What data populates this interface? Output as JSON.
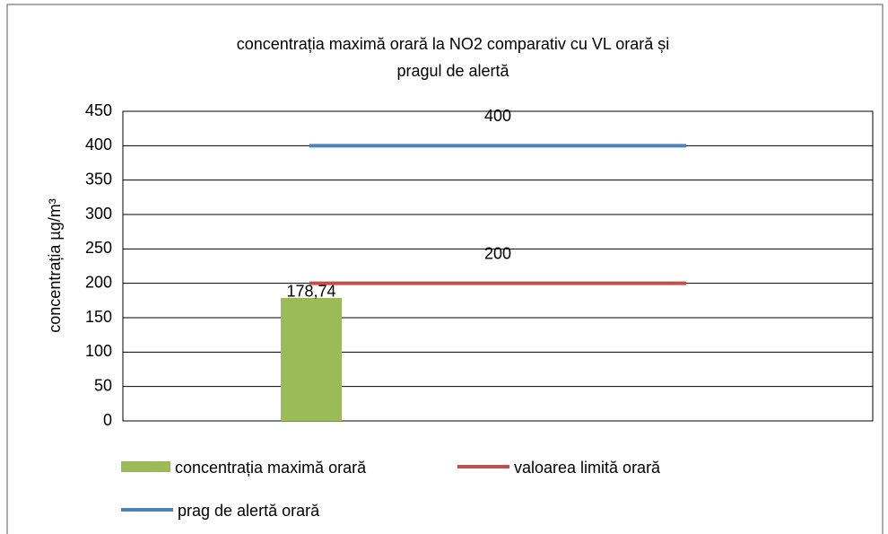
{
  "chart_data": {
    "type": "bar",
    "title": [
      "concentrația maximă orară la NO2 comparativ cu VL orară și",
      "pragul de alertă"
    ],
    "ylabel": "concentrația µg/m³",
    "categories": [
      null
    ],
    "series": [
      {
        "name": "concentrația maximă orară",
        "type": "bar",
        "color": "#9bbb59",
        "values": [
          178.74
        ],
        "value_labels": [
          "178,74"
        ]
      },
      {
        "name": "valoarea limită orară",
        "type": "line",
        "color": "#c0504d",
        "values": [
          200
        ]
      },
      {
        "name": "prag de alertă orară",
        "type": "line",
        "color": "#4f81bd",
        "values": [
          400
        ]
      }
    ],
    "ylim": [
      0,
      450
    ],
    "yticks": [
      0,
      50,
      100,
      150,
      200,
      250,
      300,
      350,
      400,
      450
    ],
    "grid": true
  }
}
